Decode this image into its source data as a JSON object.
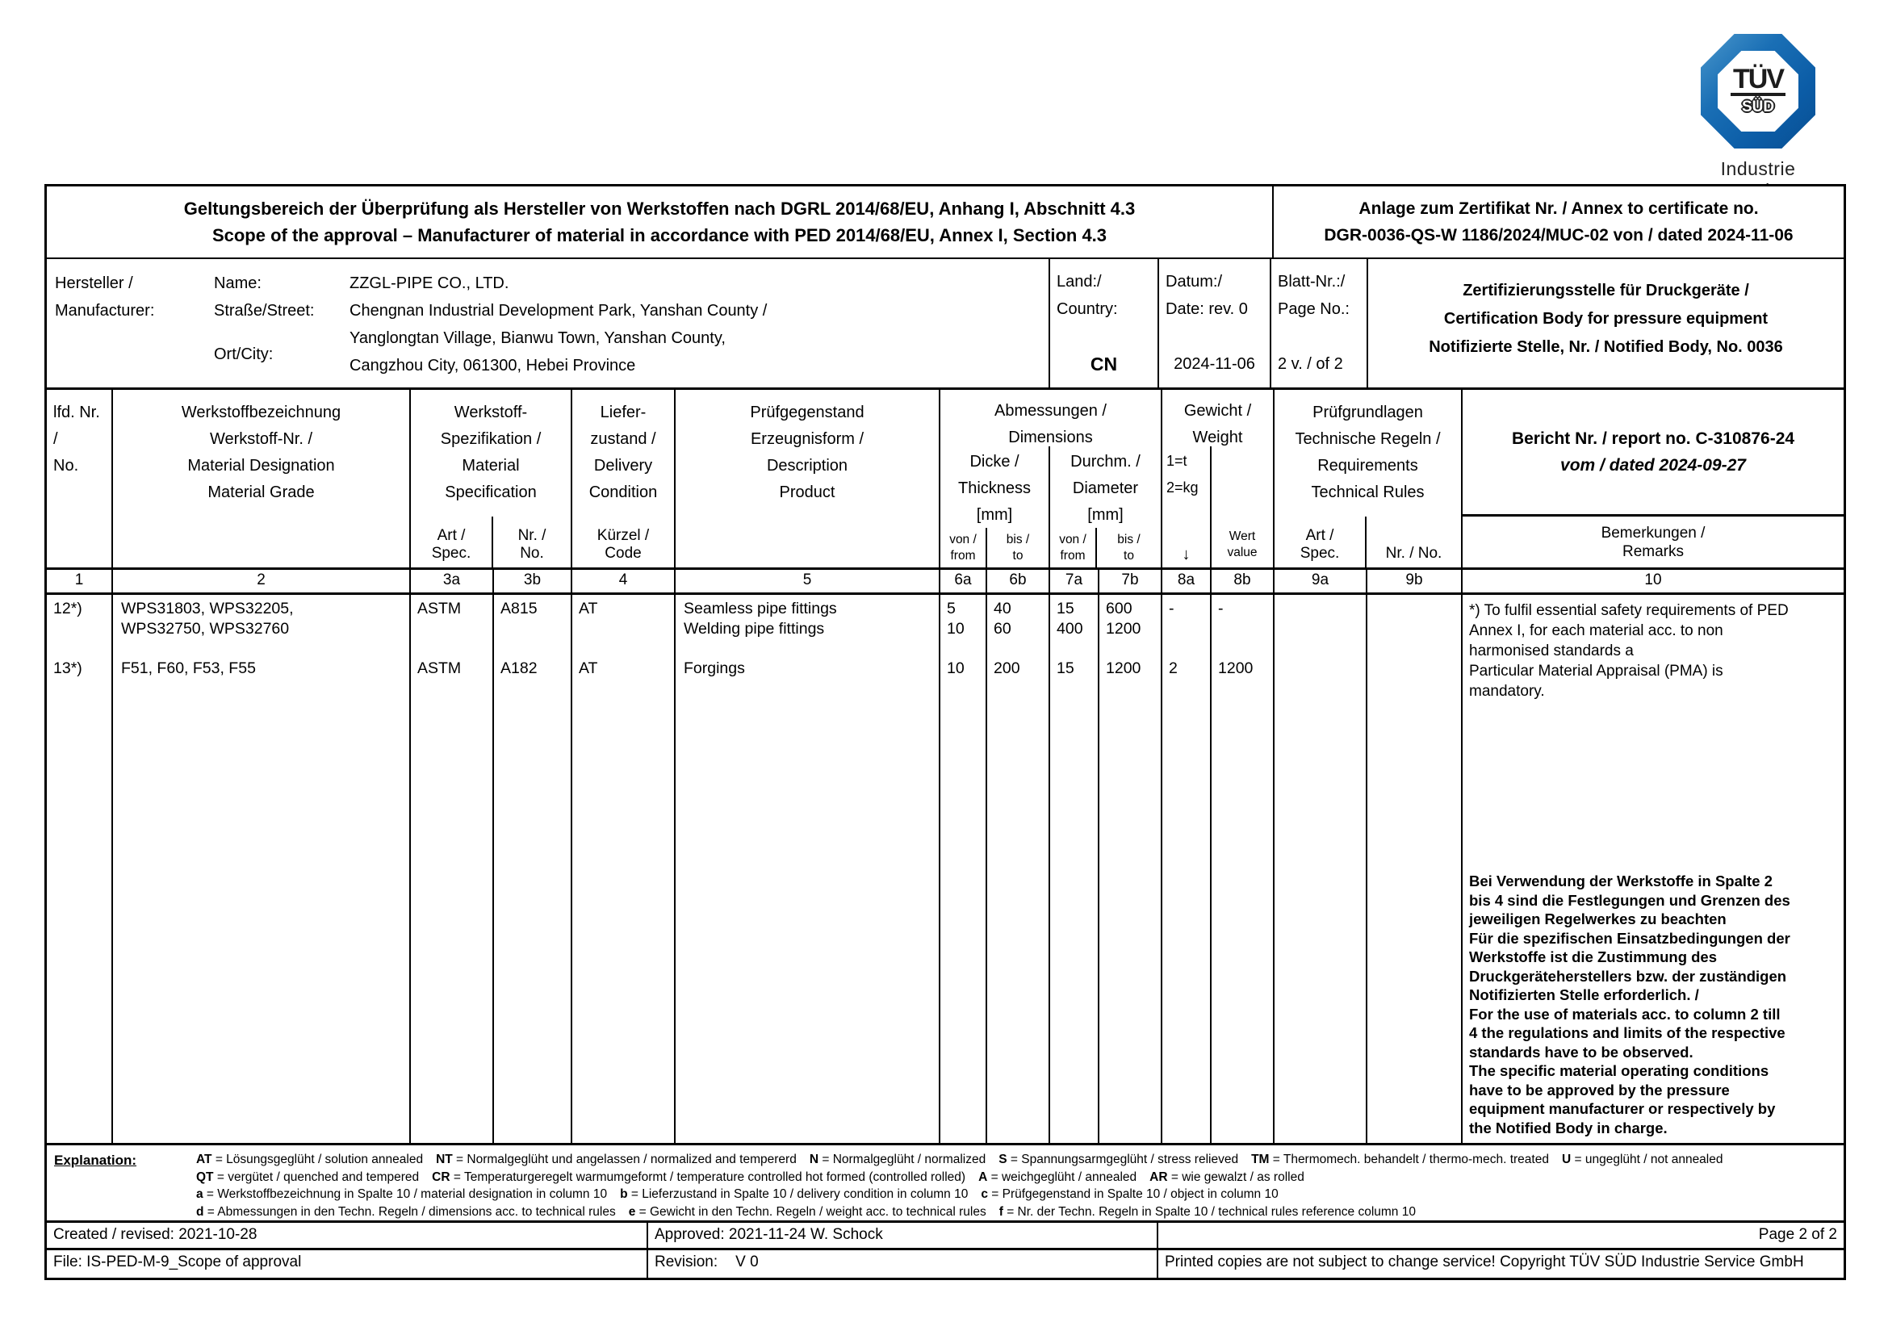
{
  "logo": {
    "tuv": "TÜV",
    "sud": "SÜD",
    "caption": "Industrie Service"
  },
  "title_block": {
    "line_de": "Geltungsbereich der Überprüfung als Hersteller von Werkstoffen nach DGRL 2014/68/EU, Anhang I, Abschnitt 4.3",
    "line_en": "Scope of the approval – Manufacturer of material in accordance with PED 2014/68/EU, Annex I, Section 4.3"
  },
  "annex_block": {
    "line1": "Anlage zum Zertifikat Nr. / Annex to certificate no.",
    "line2": "DGR-0036-QS-W 1186/2024/MUC-02 von / dated 2024-11-06"
  },
  "manufacturer": {
    "label": [
      "Hersteller /",
      "Manufacturer:"
    ],
    "field_labels": [
      "Name:",
      "Straße/Street:",
      " ",
      "Ort/City:"
    ],
    "values": [
      "ZZGL-PIPE CO., LTD.",
      "Chengnan Industrial Development Park, Yanshan County /",
      "Yanglongtan Village, Bianwu Town, Yanshan County,",
      "Cangzhou City, 061300, Hebei Province"
    ],
    "country": {
      "labels": [
        "Land:/",
        "Country:"
      ],
      "value": "CN"
    },
    "date": {
      "labels": [
        "Datum:/",
        "Date: rev. 0"
      ],
      "value": "2024-11-06"
    },
    "page": {
      "labels": [
        "Blatt-Nr.:/",
        "Page No.:"
      ],
      "value": "2 v. / of 2"
    },
    "cert_body": [
      "Zertifizierungsstelle für Druckgeräte /",
      "Certification Body for pressure equipment",
      "Notifizierte Stelle, Nr. / Notified Body, No. 0036"
    ]
  },
  "table": {
    "headers": {
      "col1": [
        "lfd. Nr.",
        "/",
        "No."
      ],
      "col2": [
        "Werkstoffbezeichnung",
        "Werkstoff-Nr. /",
        "Material Designation",
        "Material Grade"
      ],
      "col3": [
        "Werkstoff-",
        "Spezifikation /",
        "Material",
        "Specification"
      ],
      "col3a": [
        "Art /",
        "Spec."
      ],
      "col3b": [
        "Nr. /",
        "No."
      ],
      "col4": [
        "Liefer-",
        "zustand /",
        "Delivery",
        "Condition"
      ],
      "col4sub": [
        "Kürzel /",
        "Code"
      ],
      "col5": [
        "Prüfgegenstand",
        "Erzeugnisform /",
        "Description",
        "Product"
      ],
      "col67": [
        "Abmessungen /",
        "Dimensions"
      ],
      "col6": [
        "Dicke /",
        "Thickness",
        "[mm]"
      ],
      "col7": [
        "Durchm. /",
        "Diameter",
        "[mm]"
      ],
      "from": [
        "von /",
        "from"
      ],
      "to": [
        "bis /",
        "to"
      ],
      "col8": [
        "Gewicht /",
        "Weight"
      ],
      "col8_units": [
        "1=t",
        "2=kg"
      ],
      "col8a_arrow": "↓",
      "col8b": [
        "Wert",
        "value"
      ],
      "col9": [
        "Prüfgrundlagen",
        "Technische Regeln /",
        "Requirements",
        "Technical Rules"
      ],
      "col9a": [
        "Art /",
        "Spec."
      ],
      "col9b": "Nr. / No.",
      "col10_report_line1": "Bericht Nr. / report no. C-310876-24",
      "col10_report_line2": "vom / dated 2024-09-27",
      "col10_remarks": [
        "Bemerkungen /",
        "Remarks"
      ]
    },
    "col_numbers": [
      "1",
      "2",
      "3a",
      "3b",
      "4",
      "5",
      "6a",
      "6b",
      "7a",
      "7b",
      "8a",
      "8b",
      "9a",
      "9b",
      "10"
    ],
    "rows": [
      {
        "no": [
          "12*)"
        ],
        "designation": [
          "WPS31803, WPS32205,",
          "WPS32750, WPS32760"
        ],
        "spec_art": [
          "ASTM"
        ],
        "spec_no": [
          "A815"
        ],
        "delivery": [
          "AT"
        ],
        "product": [
          "Seamless pipe fittings",
          "Welding pipe fittings"
        ],
        "thick_from": [
          "5",
          "10"
        ],
        "thick_to": [
          "40",
          "60"
        ],
        "diam_from": [
          "15",
          "400"
        ],
        "diam_to": [
          "600",
          "1200"
        ],
        "weight_unit": [
          "-"
        ],
        "weight_value": [
          "-"
        ]
      },
      {
        "no": [
          "13*)"
        ],
        "designation": [
          "F51, F60, F53, F55"
        ],
        "spec_art": [
          "ASTM"
        ],
        "spec_no": [
          "A182"
        ],
        "delivery": [
          "AT"
        ],
        "product": [
          "Forgings"
        ],
        "thick_from": [
          "10"
        ],
        "thick_to": [
          "200"
        ],
        "diam_from": [
          "15"
        ],
        "diam_to": [
          "1200"
        ],
        "weight_unit": [
          "2"
        ],
        "weight_value": [
          "1200"
        ]
      }
    ],
    "remarks": {
      "note": [
        "*) To fulfil essential safety requirements of PED",
        "Annex I, for each material acc. to non",
        "harmonised standards a",
        "Particular Material Appraisal (PMA) is",
        "mandatory."
      ],
      "bold_note": [
        "Bei Verwendung der Werkstoffe in Spalte 2",
        "bis 4 sind die Festlegungen und Grenzen des",
        "jeweiligen Regelwerkes zu beachten",
        "Für die spezifischen Einsatzbedingungen der",
        "Werkstoffe ist die Zustimmung des",
        "Druckgeräteherstellers bzw. der zuständigen",
        "Notifizierten Stelle erforderlich. /",
        "For the use of materials acc. to column 2 till",
        "4 the regulations and limits of the respective",
        "standards have to be observed.",
        "The specific material operating conditions",
        "have to be approved by the pressure",
        "equipment manufacturer or respectively by",
        "the Notified Body in charge."
      ]
    }
  },
  "explanation": {
    "label": "Explanation:",
    "lines": [
      [
        [
          "AT",
          " = Lösungsgeglüht / solution annealed"
        ],
        [
          "NT",
          " = Normalgeglüht und angelassen / normalized and tempererd"
        ],
        [
          "N",
          " = Normalgeglüht / normalized"
        ],
        [
          "S",
          " = Spannungsarmgeglüht / stress relieved"
        ],
        [
          "TM",
          " = Thermomech. behandelt / thermo-mech. treated"
        ],
        [
          "U",
          " = ungeglüht / not annealed"
        ]
      ],
      [
        [
          "QT",
          " = vergütet / quenched and tempered"
        ],
        [
          "CR",
          " = Temperaturgeregelt warmumgeformt / temperature controlled hot formed (controlled rolled)"
        ],
        [
          "A",
          " = weichgeglüht / annealed"
        ],
        [
          "AR",
          " = wie gewalzt / as rolled"
        ]
      ],
      [
        [
          "a",
          " = Werkstoffbezeichnung in Spalte 10 / material designation in column 10"
        ],
        [
          "b",
          " = Lieferzustand in Spalte 10 / delivery condition in column 10"
        ],
        [
          "c",
          " = Prüfgegenstand in Spalte 10 / object in column 10"
        ]
      ],
      [
        [
          "d",
          " = Abmessungen in den Techn. Regeln / dimensions acc. to technical rules"
        ],
        [
          "e",
          " = Gewicht in den Techn. Regeln / weight acc. to technical rules"
        ],
        [
          "f",
          " = Nr. der Techn. Regeln in Spalte 10 / technical rules reference column 10"
        ]
      ]
    ]
  },
  "footer": {
    "created": "Created / revised: 2021-10-28",
    "approved": "Approved: 2021-11-24 W. Schock",
    "page": "Page 2 of 2",
    "file": "File: IS-PED-M-9_Scope of approval",
    "revision_label": "Revision:",
    "revision_value": "V 0",
    "copyright": "Printed copies are not subject to change service! Copyright TÜV SÜD Industrie Service GmbH"
  }
}
